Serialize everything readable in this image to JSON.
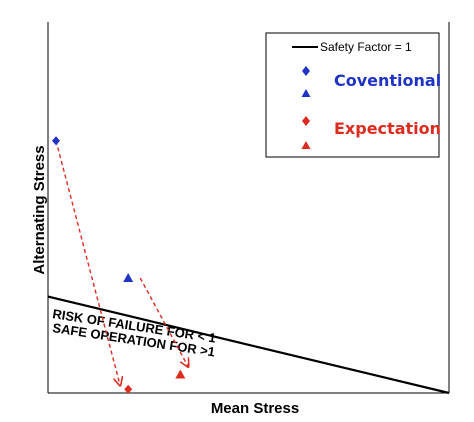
{
  "chart_data": {
    "type": "scatter",
    "xlabel": "Mean Stress",
    "ylabel": "Alternating Stress",
    "xlim": [
      0,
      100
    ],
    "ylim": [
      0,
      100
    ],
    "grid": false,
    "ticks": "none",
    "legend_position": "top-right",
    "safety_line": {
      "name": "Safety Factor = 1",
      "points": [
        [
          0,
          26
        ],
        [
          100,
          0
        ]
      ],
      "color": "#000000"
    },
    "series": [
      {
        "name": "Coventional",
        "marker": "diamond",
        "color": "#1f33c4",
        "x": 2,
        "y": 68
      },
      {
        "name": "",
        "marker": "triangle",
        "color": "#1f33c4",
        "x": 20,
        "y": 31
      },
      {
        "name": "Expectation",
        "marker": "diamond",
        "color": "#dd2b20",
        "x": 20,
        "y": 1
      },
      {
        "name": "",
        "marker": "triangle",
        "color": "#dd2b20",
        "x": 33,
        "y": 5
      }
    ],
    "arrows": [
      {
        "from": [
          2,
          68
        ],
        "to": [
          18,
          2
        ],
        "color": "#dd2b20",
        "style": "dashed"
      },
      {
        "from": [
          23,
          31
        ],
        "to": [
          35,
          7
        ],
        "color": "#dd2b20",
        "style": "dashed"
      }
    ],
    "annotations": [
      {
        "text": "RISK OF FAILURE FOR < 1",
        "side": "above-line"
      },
      {
        "text": "SAFE OPERATION FOR >1",
        "side": "below-line"
      }
    ]
  }
}
